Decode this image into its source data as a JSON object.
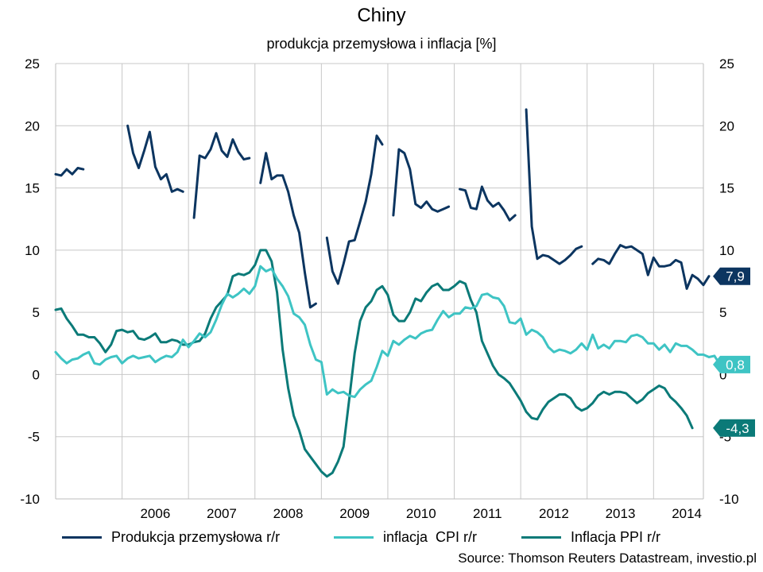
{
  "title": "Chiny",
  "subtitle": "produkcja przemysłowa i inflacja [%]",
  "source": "Source: Thomson Reuters Datastream, investio.pl",
  "chart_data": {
    "type": "line",
    "ylim": [
      -10,
      25
    ],
    "y_ticks": [
      "-10",
      "-5",
      "0",
      "5",
      "10",
      "15",
      "20",
      "25"
    ],
    "y_ticks_right": [
      "-10",
      "-5",
      "0",
      "5",
      "10",
      "15",
      "20",
      "25"
    ],
    "x_range": [
      "2005-01",
      "2014-10"
    ],
    "x_categories": [
      "2006",
      "2007",
      "2008",
      "2009",
      "2010",
      "2011",
      "2012",
      "2013",
      "2014"
    ],
    "grid": true,
    "legend_position": "bottom",
    "colors": {
      "ip": "#0c3560",
      "cpi": "#3ec4c4",
      "ppi": "#0b7a78"
    },
    "end_labels": [
      {
        "series": "ip",
        "text": "7,9",
        "value": 7.9
      },
      {
        "series": "cpi",
        "text": "0,8",
        "value": 0.8
      },
      {
        "series": "ppi",
        "text": "-4,3",
        "value": -4.3
      }
    ],
    "series": [
      {
        "key": "ip",
        "name": "Produkcja przemysłowa r/r",
        "start": "2005-01",
        "values": [
          16.1,
          16.0,
          16.5,
          16.1,
          16.6,
          16.5,
          null,
          null,
          null,
          null,
          null,
          null,
          null,
          20.0,
          17.8,
          16.6,
          18.0,
          19.5,
          16.7,
          15.7,
          16.1,
          14.7,
          14.9,
          14.7,
          null,
          12.6,
          17.6,
          17.4,
          18.1,
          19.4,
          18.0,
          17.5,
          18.9,
          17.9,
          17.3,
          17.4,
          null,
          15.4,
          17.8,
          15.7,
          16.0,
          16.0,
          14.7,
          12.8,
          11.4,
          8.2,
          5.4,
          5.7,
          null,
          11.0,
          8.3,
          7.3,
          8.9,
          10.7,
          10.8,
          12.3,
          13.9,
          16.1,
          19.2,
          18.5,
          null,
          12.8,
          18.1,
          17.8,
          16.5,
          13.7,
          13.4,
          13.9,
          13.3,
          13.1,
          13.3,
          13.5,
          null,
          14.9,
          14.8,
          13.4,
          13.3,
          15.1,
          14.0,
          13.5,
          13.8,
          13.2,
          12.4,
          12.8,
          null,
          21.3,
          11.9,
          9.3,
          9.6,
          9.5,
          9.2,
          8.9,
          9.2,
          9.6,
          10.1,
          10.3,
          null,
          8.9,
          9.3,
          9.2,
          8.9,
          9.7,
          10.4,
          10.2,
          10.3,
          10.0,
          9.7,
          8.0,
          9.4,
          8.7,
          8.7,
          8.8,
          9.2,
          9.0,
          6.9,
          8.0,
          7.7,
          7.2,
          7.9
        ]
      },
      {
        "key": "cpi",
        "name": "inflacja  CPI r/r",
        "start": "2005-01",
        "values": [
          1.8,
          1.3,
          0.9,
          1.2,
          1.3,
          1.6,
          1.8,
          0.9,
          0.8,
          1.2,
          1.4,
          1.5,
          0.9,
          1.3,
          1.5,
          1.3,
          1.4,
          1.5,
          1.0,
          1.3,
          1.5,
          1.4,
          1.8,
          2.8,
          2.2,
          2.7,
          3.3,
          3.0,
          3.4,
          4.4,
          5.6,
          6.5,
          6.2,
          6.5,
          6.9,
          6.5,
          7.1,
          8.7,
          8.3,
          8.5,
          7.7,
          7.1,
          6.3,
          4.9,
          4.6,
          4.0,
          2.4,
          1.2,
          1.0,
          -1.6,
          -1.2,
          -1.5,
          -1.4,
          -1.7,
          -1.8,
          -1.2,
          -0.8,
          -0.5,
          0.6,
          1.9,
          1.5,
          2.7,
          2.4,
          2.8,
          3.1,
          2.9,
          3.3,
          3.5,
          3.6,
          4.4,
          5.1,
          4.6,
          4.9,
          4.9,
          5.4,
          5.3,
          5.5,
          6.4,
          6.5,
          6.2,
          6.1,
          5.5,
          4.2,
          4.1,
          4.5,
          3.2,
          3.6,
          3.4,
          3.0,
          2.2,
          1.8,
          2.0,
          1.9,
          1.7,
          2.0,
          2.5,
          2.0,
          3.2,
          2.1,
          2.4,
          2.1,
          2.7,
          2.7,
          2.6,
          3.1,
          3.2,
          3.0,
          2.5,
          2.5,
          2.0,
          2.4,
          1.8,
          2.5,
          2.3,
          2.3,
          2.0,
          1.6,
          1.6,
          1.4,
          1.5,
          0.8
        ]
      },
      {
        "key": "ppi",
        "name": "Inflacja PPI r/r",
        "start": "2005-01",
        "values": [
          5.2,
          5.3,
          4.5,
          3.9,
          3.2,
          3.2,
          3.0,
          3.0,
          2.5,
          1.8,
          2.4,
          3.5,
          3.6,
          3.4,
          3.5,
          2.9,
          2.8,
          3.0,
          3.3,
          2.6,
          2.6,
          2.8,
          2.7,
          2.4,
          2.4,
          2.6,
          2.7,
          3.3,
          4.5,
          5.4,
          5.9,
          6.4,
          7.9,
          8.1,
          8.0,
          8.2,
          8.8,
          10.0,
          10.0,
          9.1,
          6.6,
          2.0,
          -1.1,
          -3.3,
          -4.5,
          -6.0,
          -6.6,
          -7.2,
          -7.8,
          -8.2,
          -7.9,
          -7.0,
          -5.8,
          -2.1,
          1.7,
          4.3,
          5.4,
          5.9,
          6.8,
          7.1,
          6.4,
          4.8,
          4.3,
          4.3,
          5.0,
          6.1,
          5.9,
          6.6,
          7.1,
          7.3,
          6.8,
          6.8,
          7.1,
          7.5,
          7.3,
          6.0,
          5.0,
          2.7,
          1.7,
          0.7,
          0.0,
          -0.3,
          -0.7,
          -1.4,
          -2.1,
          -3.0,
          -3.5,
          -3.6,
          -2.8,
          -2.2,
          -1.9,
          -1.6,
          -1.6,
          -1.9,
          -2.6,
          -2.9,
          -2.7,
          -2.3,
          -1.7,
          -1.4,
          -1.6,
          -1.4,
          -1.4,
          -1.5,
          -1.9,
          -2.3,
          -2.0,
          -1.5,
          -1.2,
          -0.9,
          -1.1,
          -1.8,
          -2.2,
          -2.7,
          -3.3,
          -4.3
        ]
      }
    ]
  }
}
